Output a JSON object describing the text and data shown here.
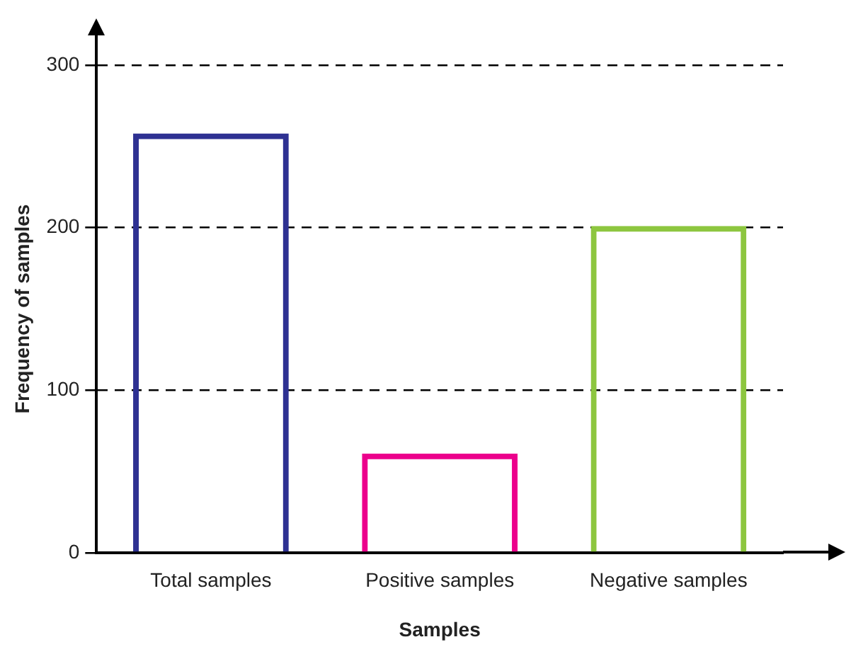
{
  "chart_data": {
    "type": "bar",
    "xlabel": "Samples",
    "ylabel": "Frequency of samples",
    "categories": [
      "Total samples",
      "Positive samples",
      "Negative samples"
    ],
    "values": [
      258,
      61,
      201
    ],
    "colors": [
      "#2e3192",
      "#ec008c",
      "#8dc63f"
    ],
    "ylim": [
      0,
      300
    ],
    "yticks": [
      0,
      100,
      200,
      300
    ],
    "grid": "y",
    "legend": false
  }
}
